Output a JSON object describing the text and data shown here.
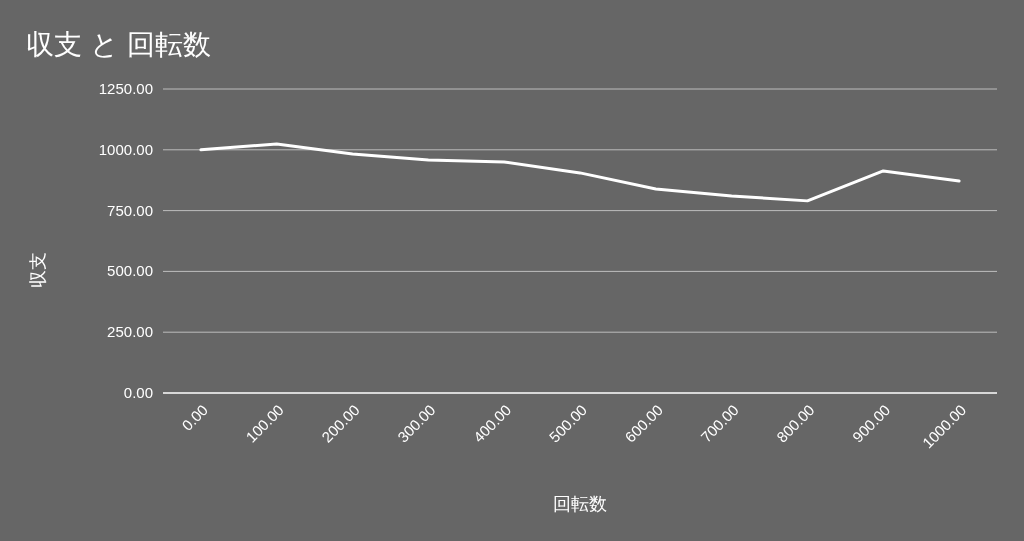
{
  "chart_data": {
    "type": "line",
    "title": "収支 と 回転数",
    "xlabel": "回転数",
    "ylabel": "収支",
    "categories": [
      "0.00",
      "100.00",
      "200.00",
      "300.00",
      "400.00",
      "500.00",
      "600.00",
      "700.00",
      "800.00",
      "900.00",
      "1000.00"
    ],
    "series": [
      {
        "color": "#ffffff",
        "values": [
          1000,
          1024,
          983,
          958,
          950,
          905,
          839,
          810,
          790,
          913,
          872
        ]
      }
    ],
    "ylim": [
      0,
      1250
    ],
    "yticks": [
      {
        "value": 0,
        "label": "0.00"
      },
      {
        "value": 250,
        "label": "250.00"
      },
      {
        "value": 500,
        "label": "500.00"
      },
      {
        "value": 750,
        "label": "750.00"
      },
      {
        "value": 1000,
        "label": "1000.00"
      },
      {
        "value": 1250,
        "label": "1250.00"
      }
    ],
    "grid": "y",
    "marker": "none",
    "line_style": "solid"
  }
}
